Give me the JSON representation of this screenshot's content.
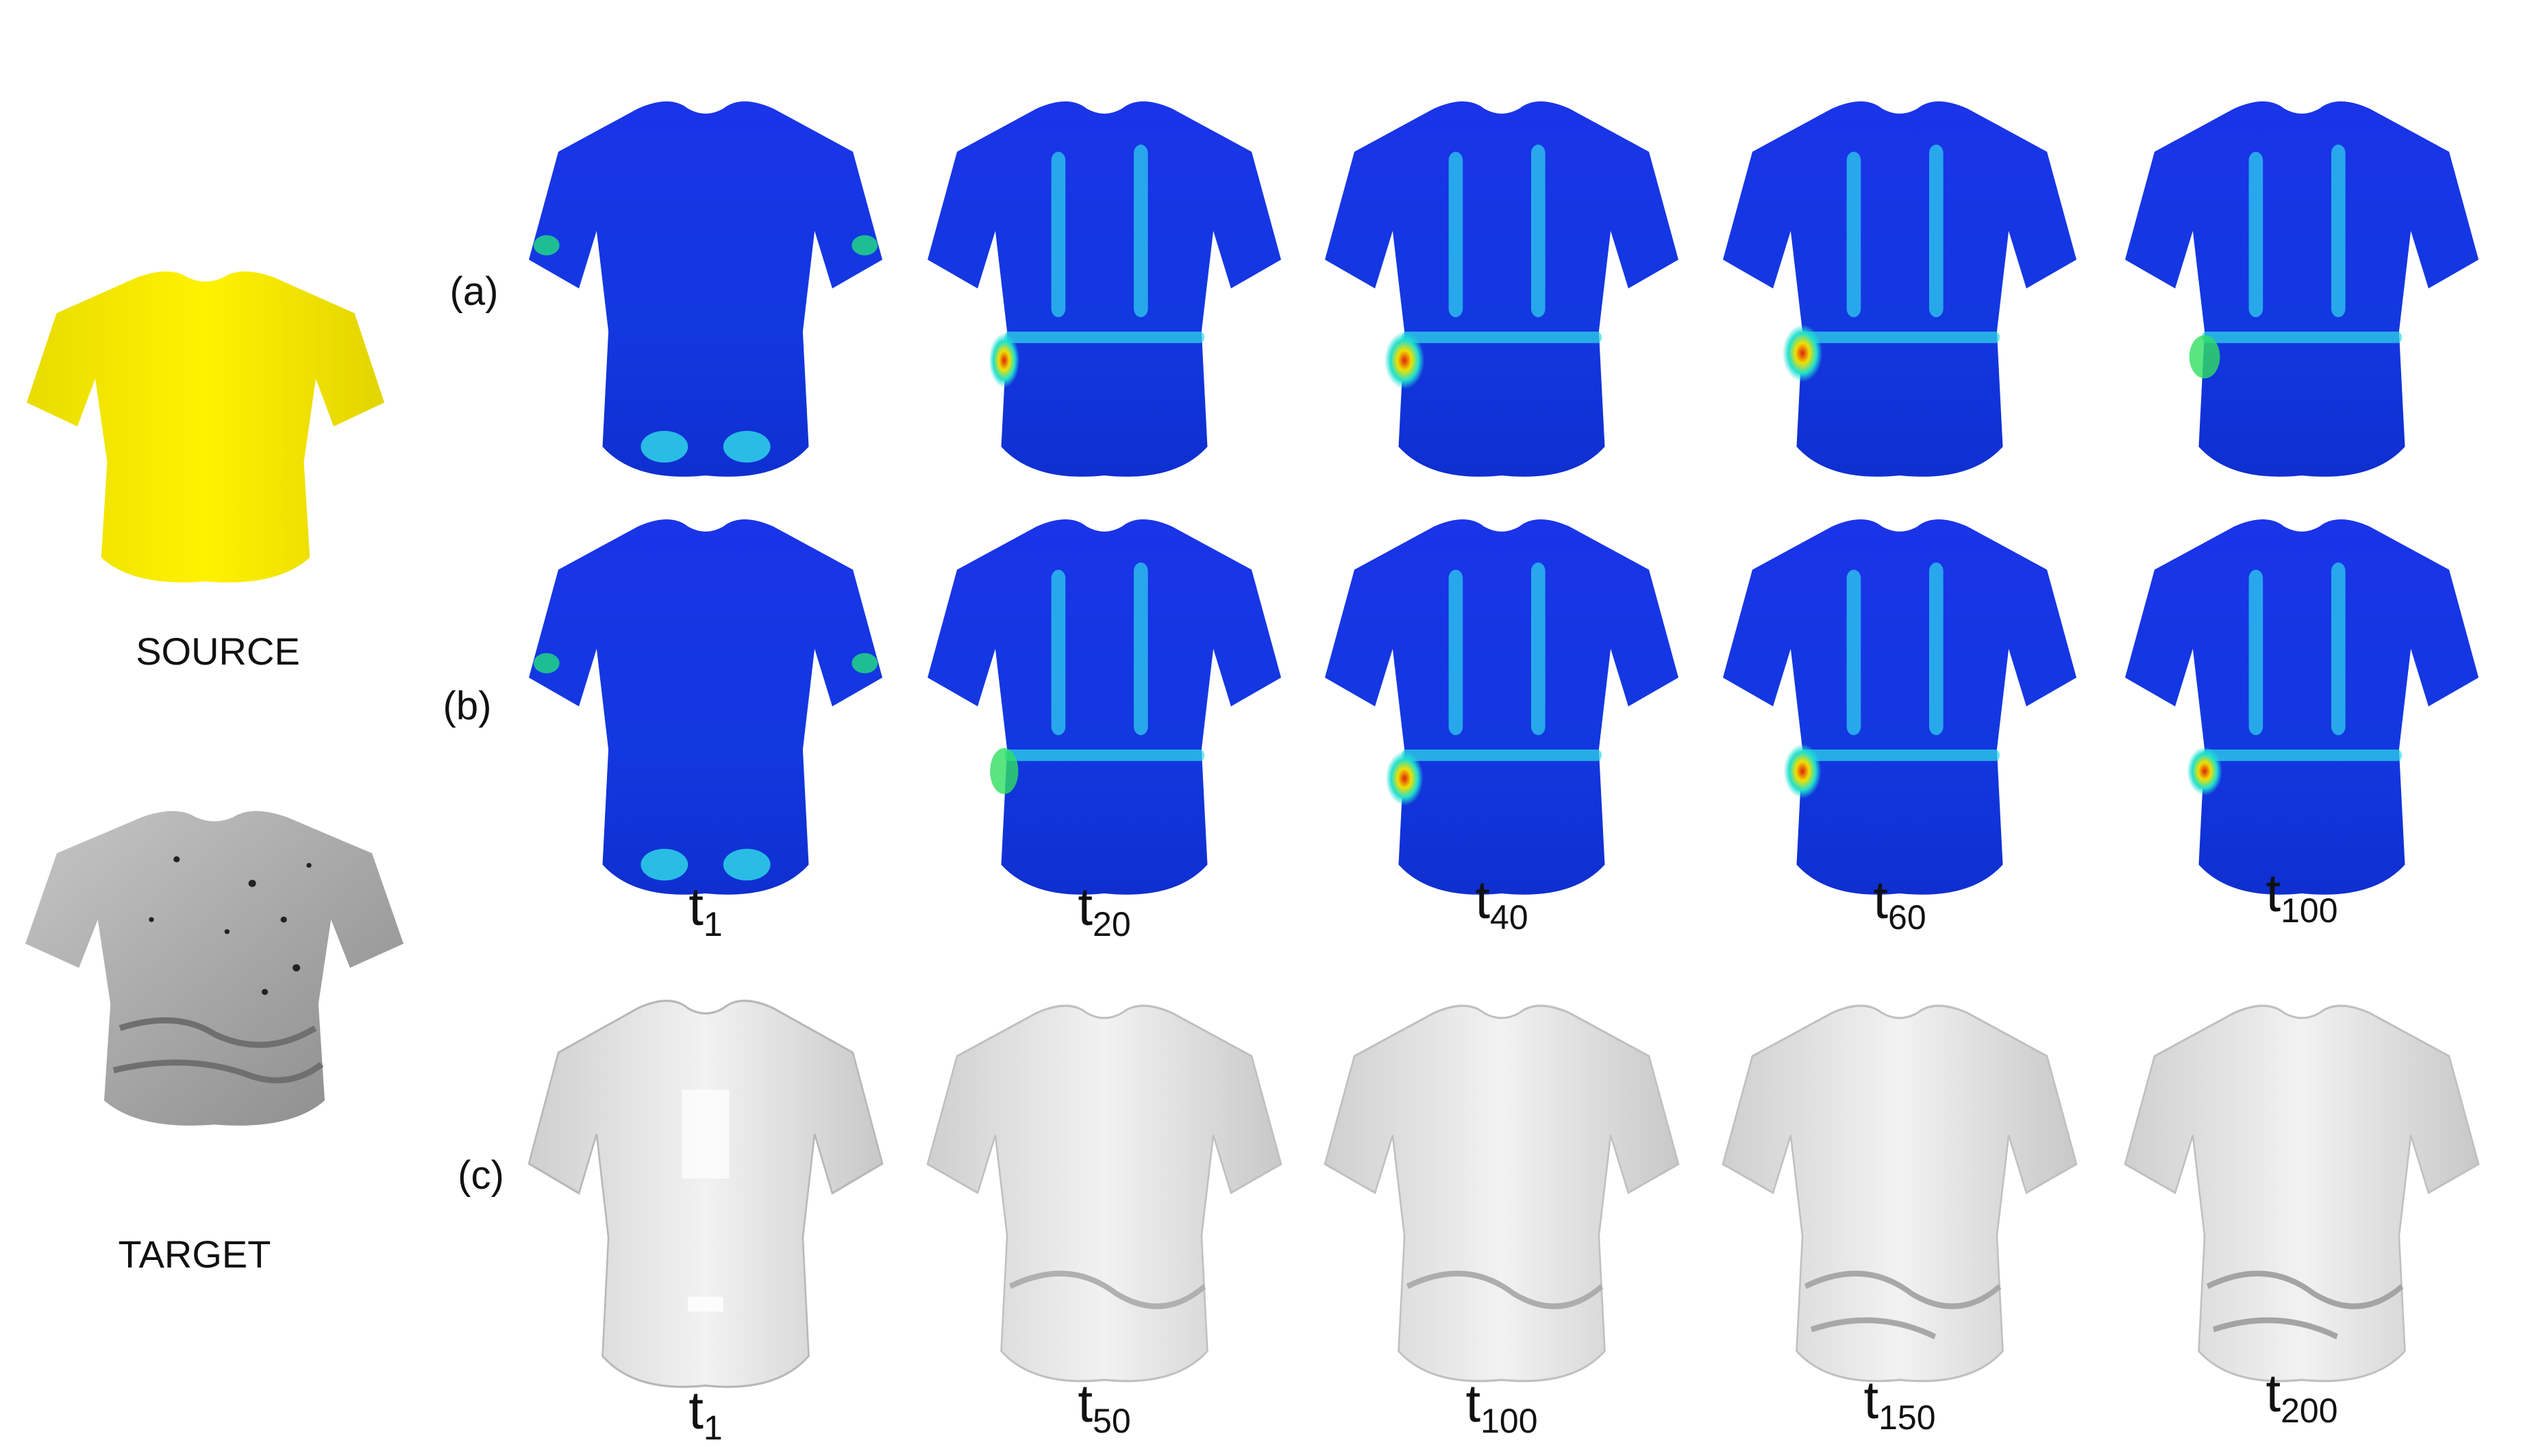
{
  "figure": {
    "source_label": "SOURCE",
    "target_label": "TARGET",
    "row_labels": [
      "(a)",
      "(b)",
      "(c)"
    ],
    "time_symbol": "t",
    "steps_ab": [
      "1",
      "20",
      "40",
      "60",
      "100"
    ],
    "steps_c": [
      "1",
      "50",
      "100",
      "150",
      "200"
    ]
  },
  "colors": {
    "source": "#f2ea00",
    "heat_low": "#1030e0",
    "heat_mid": "#00d0ff",
    "heat_high": "#d02010",
    "mesh": "#e8e8e8",
    "target_scan": "#9a9a9a"
  }
}
